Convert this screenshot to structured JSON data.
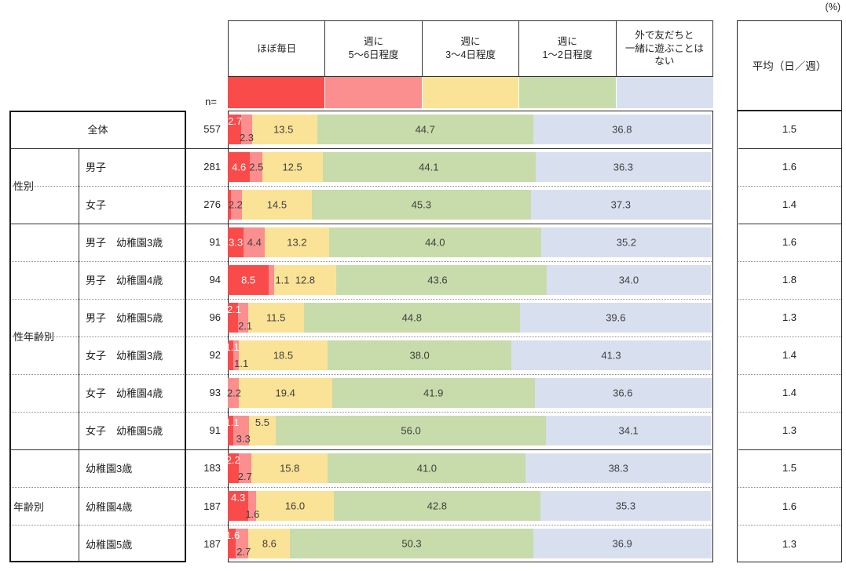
{
  "unit_label": "(%)",
  "n_label": "n=",
  "colors": {
    "border": "#222222",
    "value_label_dark": "#404040",
    "value_label_light": "#ffffff",
    "dotted_line": "#8c8c8c"
  },
  "chart_data": {
    "type": "bar",
    "stacked": true,
    "orientation": "horizontal",
    "value_unit": "%",
    "x_range": [
      0,
      100
    ],
    "grid": false,
    "legend_position": "top",
    "avg_column_title": "平均（日／週）",
    "categories": [
      "ほぼ毎日",
      "週に\n5〜6日程度",
      "週に\n3〜4日程度",
      "週に\n1〜2日程度",
      "外で友だちと\n一緒に遊ぶことは\nない"
    ],
    "category_colors": [
      "#fa4b4b",
      "#fb8f8f",
      "#fae396",
      "#c7dcaa",
      "#d8e0f0"
    ],
    "row_groups": [
      {
        "label": "",
        "first_row": 0,
        "last_row": 0
      },
      {
        "label": "性別",
        "first_row": 1,
        "last_row": 2
      },
      {
        "label": "性年齢別",
        "first_row": 3,
        "last_row": 8
      },
      {
        "label": "年齢別",
        "first_row": 9,
        "last_row": 11
      }
    ],
    "rows": [
      {
        "label": "全体",
        "n": 557,
        "values": [
          2.7,
          2.3,
          13.5,
          44.7,
          36.8
        ],
        "avg": "1.5",
        "value_labels": [
          {
            "t": "2.7",
            "x": 1.5,
            "v": "top",
            "w": true
          },
          {
            "t": "2.3",
            "x": 3.9,
            "v": "bot",
            "w": false
          },
          {
            "t": "13.5",
            "x": 11.5,
            "v": "mid",
            "w": false
          },
          {
            "t": "44.7",
            "x": 40.85,
            "v": "mid",
            "w": false
          },
          {
            "t": "36.8",
            "x": 81.6,
            "v": "mid",
            "w": false
          }
        ]
      },
      {
        "label": "男子",
        "n": 281,
        "values": [
          4.6,
          2.5,
          12.5,
          44.1,
          36.3
        ],
        "avg": "1.6",
        "value_labels": [
          {
            "t": "4.6",
            "x": 2.3,
            "v": "mid",
            "w": true
          },
          {
            "t": "2.5",
            "x": 5.9,
            "v": "mid",
            "w": false
          },
          {
            "t": "12.5",
            "x": 13.35,
            "v": "mid",
            "w": false
          },
          {
            "t": "44.1",
            "x": 41.6,
            "v": "mid",
            "w": false
          },
          {
            "t": "36.3",
            "x": 81.85,
            "v": "mid",
            "w": false
          }
        ]
      },
      {
        "label": "女子",
        "n": 276,
        "values": [
          0.7,
          2.2,
          14.5,
          45.3,
          37.3
        ],
        "avg": "1.4",
        "value_labels": [
          {
            "t": "2.2",
            "x": 1.6,
            "v": "mid",
            "w": false
          },
          {
            "t": "14.5",
            "x": 10.15,
            "v": "mid",
            "w": false
          },
          {
            "t": "45.3",
            "x": 40.05,
            "v": "mid",
            "w": false
          },
          {
            "t": "37.3",
            "x": 81.35,
            "v": "mid",
            "w": false
          }
        ]
      },
      {
        "label": "男子　幼稚園3歳",
        "n": 91,
        "values": [
          3.3,
          4.4,
          13.2,
          44.0,
          35.2
        ],
        "avg": "1.6",
        "value_labels": [
          {
            "t": "3.3",
            "x": 1.65,
            "v": "mid",
            "w": true
          },
          {
            "t": "4.4",
            "x": 5.5,
            "v": "mid",
            "w": false
          },
          {
            "t": "13.2",
            "x": 14.3,
            "v": "mid",
            "w": false
          },
          {
            "t": "44.0",
            "x": 42.9,
            "v": "mid",
            "w": false
          },
          {
            "t": "35.2",
            "x": 82.5,
            "v": "mid",
            "w": false
          }
        ]
      },
      {
        "label": "男子　幼稚園4歳",
        "n": 94,
        "values": [
          8.5,
          1.1,
          12.8,
          43.6,
          34.0
        ],
        "avg": "1.8",
        "value_labels": [
          {
            "t": "8.5",
            "x": 4.25,
            "v": "mid",
            "w": true
          },
          {
            "t": "1.1",
            "x": 11.3,
            "v": "mid",
            "w": false
          },
          {
            "t": "12.8",
            "x": 16.0,
            "v": "mid",
            "w": false
          },
          {
            "t": "43.6",
            "x": 43.4,
            "v": "mid",
            "w": false
          },
          {
            "t": "34.0",
            "x": 83.0,
            "v": "mid",
            "w": false
          }
        ]
      },
      {
        "label": "男子　幼稚園5歳",
        "n": 96,
        "values": [
          2.1,
          2.1,
          11.5,
          44.8,
          39.6
        ],
        "avg": "1.3",
        "value_labels": [
          {
            "t": "2.1",
            "x": 1.3,
            "v": "top",
            "w": true
          },
          {
            "t": "2.1",
            "x": 3.6,
            "v": "bot",
            "w": false
          },
          {
            "t": "11.5",
            "x": 9.95,
            "v": "mid",
            "w": false
          },
          {
            "t": "44.8",
            "x": 38.1,
            "v": "mid",
            "w": false
          },
          {
            "t": "39.6",
            "x": 80.3,
            "v": "mid",
            "w": false
          }
        ]
      },
      {
        "label": "女子　幼稚園3歳",
        "n": 92,
        "values": [
          1.1,
          1.1,
          18.5,
          38.0,
          41.3
        ],
        "avg": "1.4",
        "value_labels": [
          {
            "t": "1.1",
            "x": 0.9,
            "v": "top",
            "w": true
          },
          {
            "t": "1.1",
            "x": 2.8,
            "v": "bot",
            "w": false
          },
          {
            "t": "18.5",
            "x": 11.45,
            "v": "mid",
            "w": false
          },
          {
            "t": "38.0",
            "x": 39.7,
            "v": "mid",
            "w": false
          },
          {
            "t": "41.3",
            "x": 79.35,
            "v": "mid",
            "w": false
          }
        ]
      },
      {
        "label": "女子　幼稚園4歳",
        "n": 93,
        "values": [
          0.0,
          2.2,
          19.4,
          41.9,
          36.6
        ],
        "avg": "1.4",
        "value_labels": [
          {
            "t": "2.2",
            "x": 1.3,
            "v": "mid",
            "w": false
          },
          {
            "t": "19.4",
            "x": 11.9,
            "v": "mid",
            "w": false
          },
          {
            "t": "41.9",
            "x": 42.55,
            "v": "mid",
            "w": false
          },
          {
            "t": "36.6",
            "x": 81.75,
            "v": "mid",
            "w": false
          }
        ]
      },
      {
        "label": "女子　幼稚園5歳",
        "n": 91,
        "values": [
          1.1,
          3.3,
          5.5,
          56.0,
          34.1
        ],
        "avg": "1.3",
        "value_labels": [
          {
            "t": "1.1",
            "x": 0.9,
            "v": "top",
            "w": true
          },
          {
            "t": "3.3",
            "x": 3.2,
            "v": "bot",
            "w": false
          },
          {
            "t": "5.5",
            "x": 7.15,
            "v": "top",
            "w": false
          },
          {
            "t": "56.0",
            "x": 37.9,
            "v": "mid",
            "w": false
          },
          {
            "t": "34.1",
            "x": 82.95,
            "v": "mid",
            "w": false
          }
        ]
      },
      {
        "label": "幼稚園3歳",
        "n": 183,
        "values": [
          2.2,
          2.7,
          15.8,
          41.0,
          38.3
        ],
        "avg": "1.5",
        "value_labels": [
          {
            "t": "2.2",
            "x": 1.1,
            "v": "top",
            "w": true
          },
          {
            "t": "2.7",
            "x": 3.55,
            "v": "bot",
            "w": false
          },
          {
            "t": "15.8",
            "x": 12.8,
            "v": "mid",
            "w": false
          },
          {
            "t": "41.0",
            "x": 41.2,
            "v": "mid",
            "w": false
          },
          {
            "t": "38.3",
            "x": 80.85,
            "v": "mid",
            "w": false
          }
        ]
      },
      {
        "label": "幼稚園4歳",
        "n": 187,
        "values": [
          4.3,
          1.6,
          16.0,
          42.8,
          35.3
        ],
        "avg": "1.6",
        "value_labels": [
          {
            "t": "4.3",
            "x": 2.15,
            "v": "top",
            "w": true
          },
          {
            "t": "1.6",
            "x": 5.1,
            "v": "bot",
            "w": false
          },
          {
            "t": "16.0",
            "x": 13.9,
            "v": "mid",
            "w": false
          },
          {
            "t": "42.8",
            "x": 43.3,
            "v": "mid",
            "w": false
          },
          {
            "t": "35.3",
            "x": 82.35,
            "v": "mid",
            "w": false
          }
        ]
      },
      {
        "label": "幼稚園5歳",
        "n": 187,
        "values": [
          1.6,
          2.7,
          8.6,
          50.3,
          36.9
        ],
        "avg": "1.3",
        "value_labels": [
          {
            "t": "1.6",
            "x": 1.0,
            "v": "top",
            "w": true
          },
          {
            "t": "2.7",
            "x": 3.3,
            "v": "bot",
            "w": false
          },
          {
            "t": "8.6",
            "x": 8.6,
            "v": "mid",
            "w": false
          },
          {
            "t": "50.3",
            "x": 38.05,
            "v": "mid",
            "w": false
          },
          {
            "t": "36.9",
            "x": 81.65,
            "v": "mid",
            "w": false
          }
        ]
      }
    ]
  }
}
